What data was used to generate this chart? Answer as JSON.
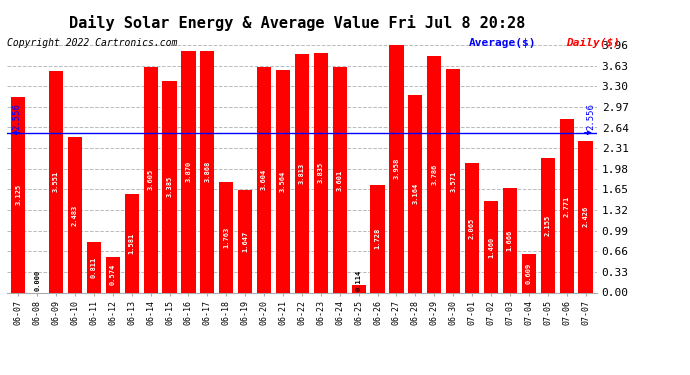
{
  "title": "Daily Solar Energy & Average Value Fri Jul 8 20:28",
  "copyright": "Copyright 2022 Cartronics.com",
  "legend_average": "Average($)",
  "legend_daily": "Daily($)",
  "average_value": 2.556,
  "bar_color": "#ff0000",
  "average_line_color": "#0000ff",
  "background_color": "#ffffff",
  "plot_bg_color": "#ffffff",
  "grid_color": "#bbbbbb",
  "categories": [
    "06-07",
    "06-08",
    "06-09",
    "06-10",
    "06-11",
    "06-12",
    "06-13",
    "06-14",
    "06-15",
    "06-16",
    "06-17",
    "06-18",
    "06-19",
    "06-20",
    "06-21",
    "06-22",
    "06-23",
    "06-24",
    "06-25",
    "06-26",
    "06-27",
    "06-28",
    "06-29",
    "06-30",
    "07-01",
    "07-02",
    "07-03",
    "07-04",
    "07-05",
    "07-06",
    "07-07"
  ],
  "values": [
    3.125,
    0.0,
    3.551,
    2.483,
    0.811,
    0.574,
    1.581,
    3.605,
    3.385,
    3.87,
    3.868,
    1.763,
    1.647,
    3.604,
    3.564,
    3.813,
    3.835,
    3.601,
    0.114,
    1.728,
    3.958,
    3.164,
    3.786,
    3.571,
    2.065,
    1.46,
    1.666,
    0.609,
    2.155,
    2.771,
    2.426
  ],
  "yticks": [
    0.0,
    0.33,
    0.66,
    0.99,
    1.32,
    1.65,
    1.98,
    2.31,
    2.64,
    2.97,
    3.3,
    3.63,
    3.96
  ],
  "ylim": [
    0,
    3.96
  ],
  "bar_text_color": "#ffffff",
  "bar_text_fontsize": 5.0,
  "title_fontsize": 11,
  "copyright_fontsize": 7,
  "legend_fontsize": 8,
  "ytick_fontsize": 8,
  "xtick_fontsize": 6
}
